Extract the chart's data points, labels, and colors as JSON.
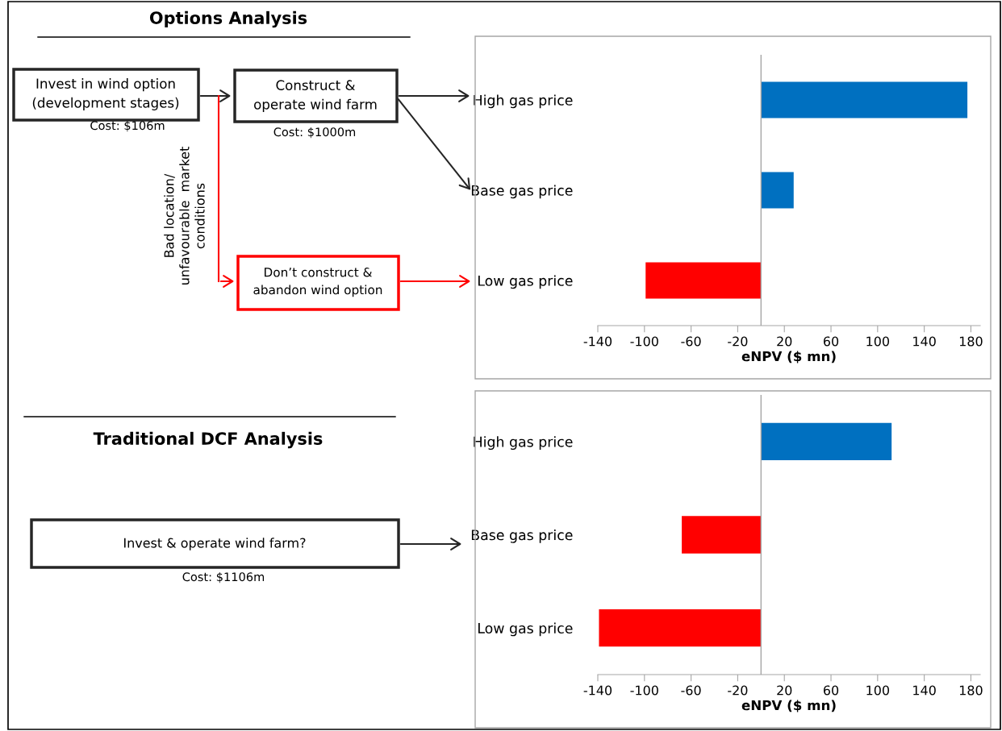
{
  "chart_data": [
    {
      "type": "bar",
      "orientation": "horizontal",
      "xlabel": "eNPV ($ mn)",
      "categories": [
        "High gas price",
        "Base gas price",
        "Low gas price"
      ],
      "series": [
        {
          "values": [
            177,
            28,
            -99
          ],
          "colors": [
            "#0070c0",
            "#0070c0",
            "#ff0000"
          ]
        }
      ],
      "xlim": [
        -140,
        188
      ],
      "xticks": [
        -140,
        -100,
        -60,
        -20,
        20,
        60,
        100,
        140,
        180
      ],
      "grid": false,
      "legend": false,
      "annotations": [
        "Options Analysis",
        "Invest in wind option\n(development stages)",
        "Cost: $106m",
        "Construct &\noperate wind farm",
        "Cost: $1000m",
        "Bad location/\nunfavourable  market\nconditions",
        "Don’t construct &\nabandon wind option"
      ]
    },
    {
      "type": "bar",
      "orientation": "horizontal",
      "xlabel": "eNPV ($ mn)",
      "categories": [
        "High gas price",
        "Base gas price",
        "Low gas price"
      ],
      "series": [
        {
          "values": [
            112,
            -68,
            -139
          ],
          "colors": [
            "#0070c0",
            "#ff0000",
            "#ff0000"
          ]
        }
      ],
      "xlim": [
        -140,
        188
      ],
      "xticks": [
        -140,
        -100,
        -60,
        -20,
        20,
        60,
        100,
        140,
        180
      ],
      "grid": false,
      "legend": false,
      "annotations": [
        "Traditional DCF Analysis",
        "Invest & operate wind farm?",
        "Cost: $1106m"
      ]
    }
  ]
}
